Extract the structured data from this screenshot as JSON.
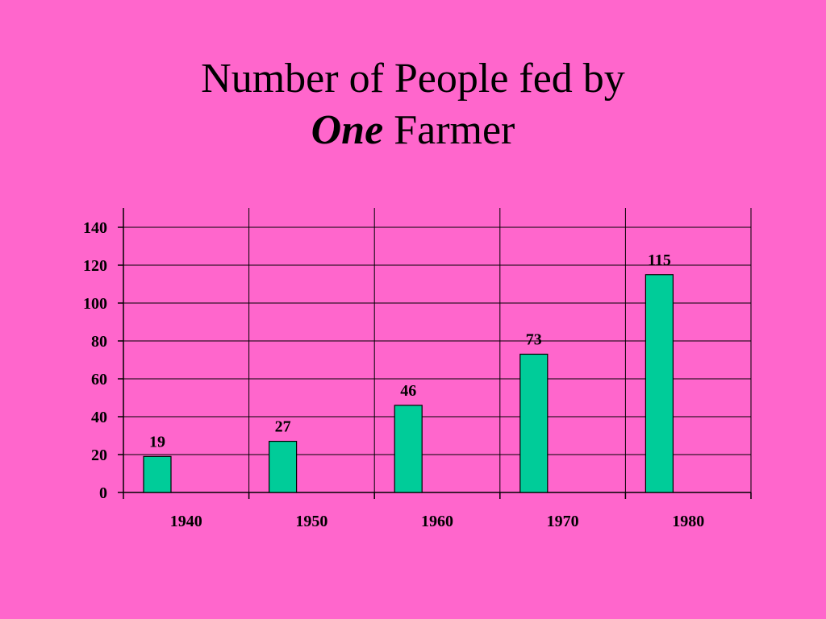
{
  "title": {
    "line1": "Number of People fed by",
    "line2_emphasis": "One",
    "line2_rest": " Farmer"
  },
  "chart_data": {
    "type": "bar",
    "categories": [
      "1940",
      "1950",
      "1960",
      "1970",
      "1980"
    ],
    "values": [
      19,
      27,
      46,
      73,
      115
    ],
    "data_labels": [
      "19",
      "27",
      "46",
      "73",
      "115"
    ],
    "title": "Number of People fed by One Farmer",
    "xlabel": "",
    "ylabel": "",
    "ylim": [
      0,
      140
    ],
    "yticks": [
      0,
      20,
      40,
      60,
      80,
      100,
      120,
      140
    ],
    "grid": true,
    "legend": "none",
    "colors": {
      "bar_fill": "#00cc99",
      "bar_stroke": "#000000",
      "background": "#ff66cc",
      "grid": "#000000"
    }
  }
}
